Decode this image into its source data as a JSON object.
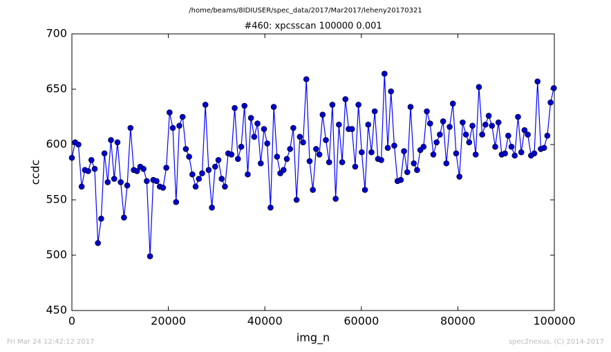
{
  "chart_data": {
    "type": "line",
    "suptitle": "/home/beams/8IDIUSER/spec_data/2017/Mar2017/leheny20170321",
    "title": "#460: xpcsscan 100000 0.001",
    "x_label": "img_n",
    "y_label": "ccdc",
    "footer_left": "Fri Mar 24 12:42:12 2017",
    "footer_right": "spec2nexus, (C) 2014-2017",
    "xlim": [
      0,
      100000
    ],
    "xticks": [
      0,
      20000,
      40000,
      60000,
      80000,
      100000
    ],
    "ylim": [
      450,
      700
    ],
    "yticks": [
      450,
      500,
      550,
      600,
      650,
      700
    ],
    "x": [
      0,
      675,
      1350,
      2025,
      2700,
      3375,
      4050,
      4725,
      5400,
      6075,
      6750,
      7425,
      8100,
      8775,
      9450,
      10125,
      10800,
      11475,
      12150,
      12825,
      13500,
      14175,
      14850,
      15525,
      16200,
      16875,
      17550,
      18225,
      18900,
      19575,
      20250,
      20925,
      21600,
      22275,
      22950,
      23625,
      24300,
      24975,
      25650,
      26325,
      27000,
      27675,
      28350,
      29025,
      29700,
      30375,
      31050,
      31725,
      32400,
      33075,
      33750,
      34425,
      35100,
      35775,
      36450,
      37125,
      37800,
      38475,
      39150,
      39825,
      40500,
      41175,
      41850,
      42525,
      43200,
      43875,
      44550,
      45225,
      45900,
      46575,
      47250,
      47925,
      48600,
      49275,
      49950,
      50625,
      51300,
      51975,
      52650,
      53325,
      54000,
      54675,
      55350,
      56025,
      56700,
      57375,
      58050,
      58725,
      59400,
      60075,
      60750,
      61425,
      62100,
      62775,
      63450,
      64125,
      64800,
      65475,
      66150,
      66825,
      67500,
      68175,
      68850,
      69525,
      70200,
      70875,
      71550,
      72225,
      72900,
      73575,
      74250,
      74925,
      75600,
      76275,
      76950,
      77625,
      78300,
      78975,
      79650,
      80325,
      81000,
      81675,
      82350,
      83025,
      83700,
      84375,
      85050,
      85725,
      86400,
      87075,
      87750,
      88425,
      89100,
      89775,
      90450,
      91125,
      91800,
      92475,
      93150,
      93825,
      94500,
      95175,
      95850,
      96525,
      97200,
      97875,
      98550,
      99225,
      99900
    ],
    "series": [
      {
        "color": "#0000ff",
        "marker_color": "#0000cc",
        "values": [
          588,
          602,
          600,
          562,
          577,
          576,
          586,
          578,
          511,
          533,
          592,
          566,
          604,
          569,
          602,
          566,
          534,
          563,
          615,
          577,
          576,
          580,
          578,
          567,
          499,
          568,
          567,
          562,
          561,
          579,
          629,
          615,
          548,
          617,
          625,
          596,
          589,
          573,
          562,
          569,
          574,
          636,
          577,
          543,
          580,
          586,
          569,
          562,
          592,
          591,
          633,
          587,
          598,
          635,
          573,
          624,
          607,
          619,
          583,
          614,
          601,
          543,
          634,
          589,
          574,
          577,
          587,
          596,
          615,
          550,
          607,
          602,
          659,
          585,
          559,
          596,
          591,
          627,
          604,
          584,
          636,
          551,
          618,
          584,
          641,
          614,
          614,
          580,
          636,
          593,
          559,
          618,
          593,
          630,
          587,
          586,
          664,
          597,
          648,
          599,
          567,
          568,
          594,
          575,
          634,
          583,
          577,
          595,
          598,
          630,
          619,
          591,
          602,
          609,
          621,
          583,
          616,
          637,
          592,
          571,
          620,
          609,
          602,
          617,
          591,
          652,
          609,
          618,
          626,
          617,
          598,
          620,
          591,
          592,
          608,
          598,
          590,
          625,
          593,
          613,
          609,
          590,
          592,
          657,
          596,
          597,
          608,
          638,
          651
        ]
      }
    ]
  }
}
